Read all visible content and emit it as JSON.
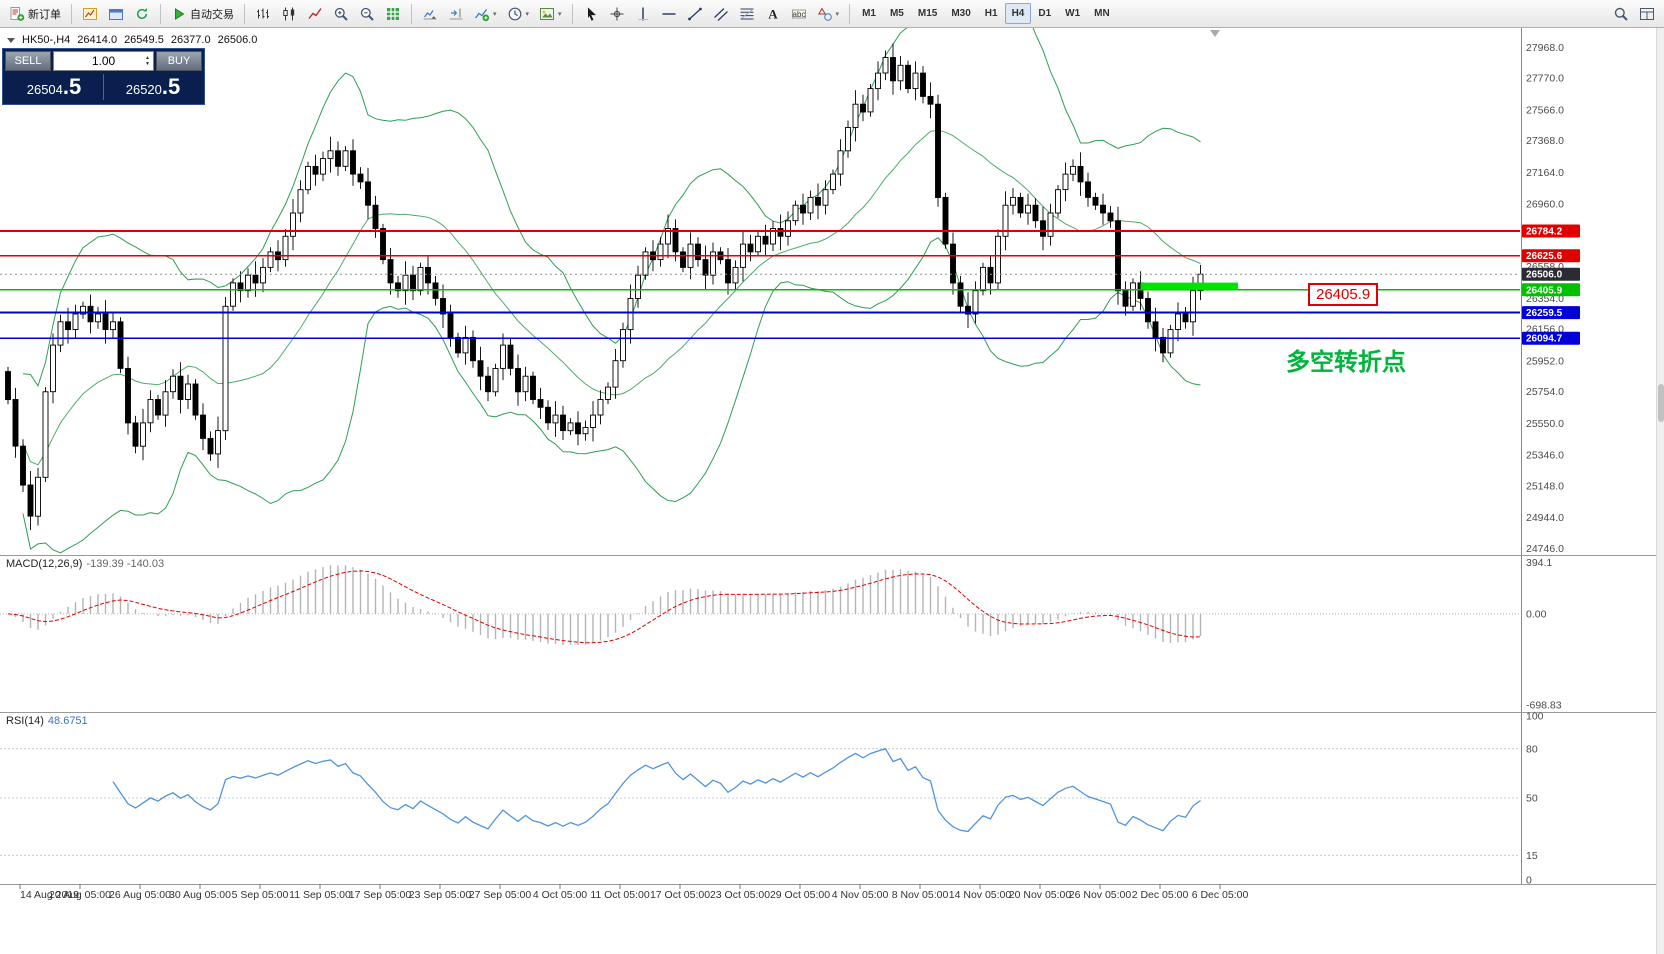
{
  "toolbar": {
    "groups": [
      [
        {
          "name": "new-order-button",
          "icon": "new-order",
          "label": "新订单"
        }
      ],
      [
        {
          "name": "new-chart-button",
          "icon": "new-chart"
        },
        {
          "name": "profiles-button",
          "icon": "profiles"
        },
        {
          "name": "refresh-button",
          "icon": "refresh"
        }
      ],
      [
        {
          "name": "autotrade-button",
          "icon": "play",
          "label": "自动交易"
        }
      ],
      [
        {
          "name": "bar-chart-button",
          "icon": "bars"
        },
        {
          "name": "candle-chart-button",
          "icon": "candles"
        },
        {
          "name": "line-chart-button",
          "icon": "line"
        },
        {
          "name": "zoom-in-button",
          "icon": "zoom-in"
        },
        {
          "name": "zoom-out-button",
          "icon": "zoom-out"
        },
        {
          "name": "grid-button",
          "icon": "grid"
        }
      ],
      [
        {
          "name": "auto-scroll-button",
          "icon": "auto-scroll"
        },
        {
          "name": "chart-shift-button",
          "icon": "chart-shift"
        },
        {
          "name": "indicators-button",
          "icon": "indicators",
          "caret": true
        },
        {
          "name": "periods-button",
          "icon": "clock",
          "caret": true
        },
        {
          "name": "templates-button",
          "icon": "template",
          "caret": true
        }
      ],
      [
        {
          "name": "cursor-button",
          "icon": "cursor"
        },
        {
          "name": "crosshair-button",
          "icon": "crosshair"
        },
        {
          "name": "vertical-line-button",
          "icon": "vline"
        },
        {
          "name": "horizontal-line-button",
          "icon": "hline"
        },
        {
          "name": "trendline-button",
          "icon": "trendline"
        },
        {
          "name": "channel-button",
          "icon": "channel"
        },
        {
          "name": "fibonacci-button",
          "icon": "fibonacci"
        },
        {
          "name": "text-button",
          "icon": "text"
        },
        {
          "name": "label-button",
          "icon": "label"
        },
        {
          "name": "shapes-button",
          "icon": "shapes",
          "caret": true
        }
      ]
    ],
    "timeframes": {
      "labels": [
        "M1",
        "M5",
        "M15",
        "M30",
        "H1",
        "H4",
        "D1",
        "W1",
        "MN"
      ],
      "active": "H4"
    },
    "right_icons": [
      {
        "name": "search-button",
        "icon": "search"
      },
      {
        "name": "windows-button",
        "icon": "layout"
      }
    ]
  },
  "order_panel": {
    "sell_label": "SELL",
    "buy_label": "BUY",
    "volume": "1.00",
    "sell_price": "26504.5",
    "buy_price": "26520.5"
  },
  "chart": {
    "header": {
      "symbol": "HK50-,H4",
      "open": "26414.0",
      "high": "26549.5",
      "low": "26377.0",
      "close": "26506.0"
    },
    "price_axis_labels": [
      "27968.0",
      "27770.0",
      "27566.0",
      "27368.0",
      "27164.0",
      "26960.0",
      "26768.0",
      "26558.0",
      "26354.0",
      "26156.0",
      "25952.0",
      "25754.0",
      "25550.0",
      "25346.0",
      "25148.0",
      "24944.0",
      "24746.0"
    ],
    "lines": [
      {
        "label": "26784.2",
        "price": 26784.2,
        "color": "#e00000"
      },
      {
        "label": "26625.6",
        "price": 26625.6,
        "color": "#e00000"
      },
      {
        "label": "26405.9",
        "price": 26405.9,
        "color": "#00c000"
      },
      {
        "label": "26259.5",
        "price": 26259.5,
        "color": "#0000d8"
      },
      {
        "label": "26094.7",
        "price": 26094.7,
        "color": "#0000d8"
      }
    ],
    "bid": {
      "label": "26506.0",
      "price": 26506.0,
      "color": "#2b2b33"
    },
    "annotations": {
      "price_label": "26405.9",
      "turning_point_text": "多空转折点",
      "highlight": {
        "from_bar": 151,
        "to_bar": 164,
        "price": 26430,
        "color": "#00e400"
      }
    },
    "time_axis": [
      "14 Aug 2019",
      "20 Aug 05:00",
      "26 Aug 05:00",
      "30 Aug 05:00",
      "5 Sep 05:00",
      "11 Sep 05:00",
      "17 Sep 05:00",
      "23 Sep 05:00",
      "27 Sep 05:00",
      "4 Oct 05:00",
      "11 Oct 05:00",
      "17 Oct 05:00",
      "23 Oct 05:00",
      "29 Oct 05:00",
      "4 Nov 05:00",
      "8 Nov 05:00",
      "14 Nov 05:00",
      "20 Nov 05:00",
      "26 Nov 05:00",
      "2 Dec 05:00",
      "6 Dec 05:00"
    ]
  },
  "macd": {
    "name": "MACD(12,26,9)",
    "values": "-139.39 -140.03",
    "axis": [
      "394.1",
      "0.00",
      "-698.83"
    ],
    "params": [
      12,
      26,
      9
    ]
  },
  "rsi": {
    "name": "RSI(14)",
    "value": "48.6751",
    "axis": [
      "100",
      "80",
      "50",
      "15",
      "0"
    ],
    "levels": [
      80,
      50,
      15
    ],
    "params": [
      14
    ]
  },
  "colors": {
    "up_candle": "#ffffff",
    "down_candle": "#000000",
    "candle_border": "#000000",
    "bollinger": "#2e9e52",
    "line_red": "#e00000",
    "line_green": "#00c000",
    "line_blue": "#0000d8",
    "bid_tag": "#2b2b33",
    "highlight_green": "#00e400",
    "macd_histogram": "#b4b4b4",
    "macd_signal": "#e00000",
    "rsi_line": "#4f94dd"
  },
  "chart_data": {
    "type": "candlestick",
    "symbol": "HK50-",
    "timeframe": "H4",
    "title": "HK50-,H4",
    "ohlc_header": {
      "open": 26414.0,
      "high": 26549.5,
      "low": 26377.0,
      "close": 26506.0
    },
    "last_price": 26506.0,
    "y_range": [
      24700,
      28090
    ],
    "y_axis_ticks": [
      27968.0,
      27770.0,
      27566.0,
      27368.0,
      27164.0,
      26960.0,
      26768.0,
      26558.0,
      26354.0,
      26156.0,
      25952.0,
      25754.0,
      25550.0,
      25346.0,
      25148.0,
      24944.0,
      24746.0
    ],
    "x_axis_labels": [
      "14 Aug 2019",
      "20 Aug 05:00",
      "26 Aug 05:00",
      "30 Aug 05:00",
      "5 Sep 05:00",
      "11 Sep 05:00",
      "17 Sep 05:00",
      "23 Sep 05:00",
      "27 Sep 05:00",
      "4 Oct 05:00",
      "11 Oct 05:00",
      "17 Oct 05:00",
      "23 Oct 05:00",
      "29 Oct 05:00",
      "4 Nov 05:00",
      "8 Nov 05:00",
      "14 Nov 05:00",
      "20 Nov 05:00",
      "26 Nov 05:00",
      "2 Dec 05:00",
      "6 Dec 05:00"
    ],
    "closes": [
      25700,
      25400,
      25150,
      24950,
      25200,
      25750,
      26050,
      26200,
      26150,
      26250,
      26300,
      26200,
      26250,
      26150,
      26200,
      25900,
      25550,
      25400,
      25550,
      25700,
      25600,
      25750,
      25850,
      25700,
      25800,
      25600,
      25450,
      25350,
      25500,
      26300,
      26450,
      26400,
      26500,
      26450,
      26550,
      26650,
      26600,
      26750,
      26900,
      27050,
      27200,
      27150,
      27250,
      27300,
      27200,
      27300,
      27150,
      27100,
      26950,
      26800,
      26600,
      26450,
      26400,
      26500,
      26400,
      26550,
      26450,
      26350,
      26250,
      26100,
      26000,
      26100,
      25950,
      25850,
      25750,
      25900,
      26050,
      25900,
      25750,
      25850,
      25700,
      25650,
      25550,
      25600,
      25500,
      25550,
      25480,
      25520,
      25600,
      25700,
      25780,
      25950,
      26150,
      26350,
      26500,
      26650,
      26600,
      26700,
      26800,
      26650,
      26550,
      26700,
      26600,
      26500,
      26650,
      26600,
      26450,
      26550,
      26700,
      26650,
      26750,
      26700,
      26800,
      26750,
      26850,
      26950,
      26900,
      27000,
      26950,
      27050,
      27150,
      27300,
      27450,
      27600,
      27550,
      27700,
      27800,
      27900,
      27750,
      27850,
      27700,
      27800,
      27650,
      27600,
      27000,
      26700,
      26450,
      26300,
      26250,
      26400,
      26550,
      26450,
      26750,
      26950,
      27000,
      26900,
      26950,
      26850,
      26750,
      26900,
      27050,
      27150,
      27200,
      27100,
      27000,
      26950,
      26900,
      26850,
      26400,
      26300,
      26450,
      26350,
      26200,
      26100,
      26000,
      26150,
      26250,
      26200,
      26400,
      26506
    ],
    "overlays": {
      "bollinger": {
        "period": 20,
        "deviation": 2,
        "color": "#2e9e52"
      }
    },
    "horizontal_levels": [
      {
        "price": 26784.2,
        "color": "red"
      },
      {
        "price": 26625.6,
        "color": "red"
      },
      {
        "price": 26405.9,
        "color": "green"
      },
      {
        "price": 26259.5,
        "color": "blue"
      },
      {
        "price": 26094.7,
        "color": "blue"
      }
    ],
    "indicators": [
      {
        "type": "MACD",
        "params": [
          12,
          26,
          9
        ],
        "current_values": [
          -139.39,
          -140.03
        ],
        "scale": [
          394.1,
          0.0,
          -698.83
        ]
      },
      {
        "type": "RSI",
        "params": [
          14
        ],
        "current_value": 48.6751,
        "scale": [
          0,
          100
        ],
        "levels": [
          80,
          50,
          15
        ]
      }
    ]
  }
}
